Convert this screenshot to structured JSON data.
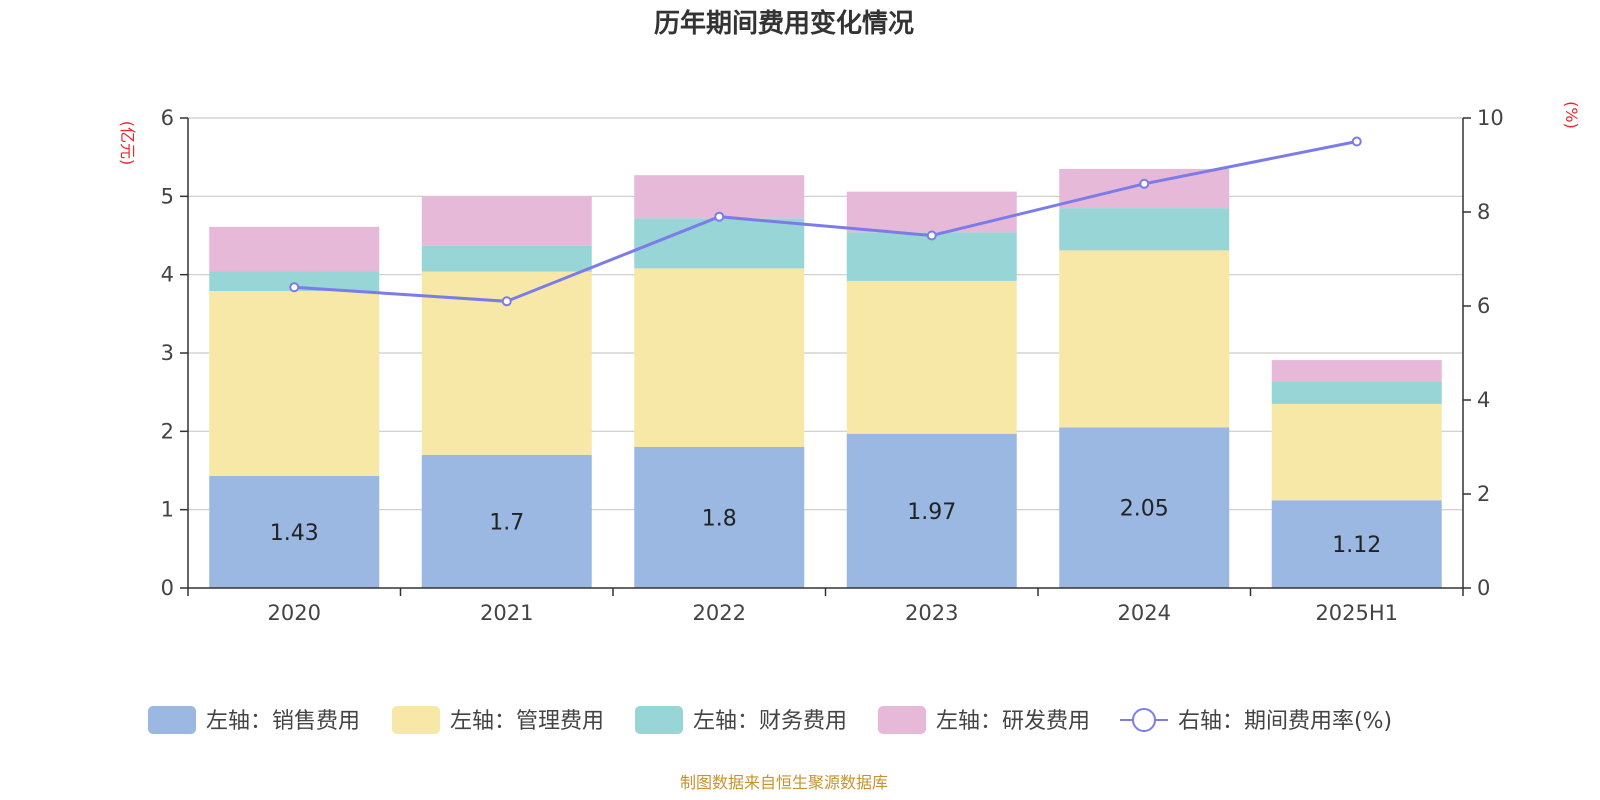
{
  "chart_data": {
    "type": "bar",
    "title": "历年期间费用变化情况",
    "categories": [
      "2020",
      "2021",
      "2022",
      "2023",
      "2024",
      "2025H1"
    ],
    "y_left": {
      "unit": "(亿元)",
      "range": [
        0,
        6
      ],
      "ticks": [
        0,
        1,
        2,
        3,
        4,
        5,
        6
      ]
    },
    "y_right": {
      "unit": "(%)",
      "range": [
        0,
        10
      ],
      "ticks": [
        0,
        2,
        4,
        6,
        8,
        10
      ]
    },
    "grid": true,
    "legend_position": "bottom",
    "series": [
      {
        "name": "左轴：销售费用",
        "type": "bar",
        "axis": "left",
        "color": "#9bb8e2",
        "values": [
          1.43,
          1.7,
          1.8,
          1.97,
          2.05,
          1.12
        ],
        "show_labels": true
      },
      {
        "name": "左轴：管理费用",
        "type": "bar",
        "axis": "left",
        "color": "#f8e8a8",
        "values": [
          2.36,
          2.34,
          2.28,
          1.95,
          2.26,
          1.23
        ]
      },
      {
        "name": "左轴：财务费用",
        "type": "bar",
        "axis": "left",
        "color": "#98d5d6",
        "values": [
          0.25,
          0.33,
          0.64,
          0.62,
          0.54,
          0.28
        ]
      },
      {
        "name": "左轴：研发费用",
        "type": "bar",
        "axis": "left",
        "color": "#e7b9d9",
        "values": [
          0.57,
          0.63,
          0.55,
          0.52,
          0.5,
          0.28
        ]
      },
      {
        "name": "右轴：期间费用率(%)",
        "type": "line",
        "axis": "right",
        "color": "#7b7bea",
        "values": [
          6.4,
          6.1,
          7.9,
          7.5,
          8.6,
          9.5
        ]
      }
    ],
    "source": "制图数据来自恒生聚源数据库"
  }
}
